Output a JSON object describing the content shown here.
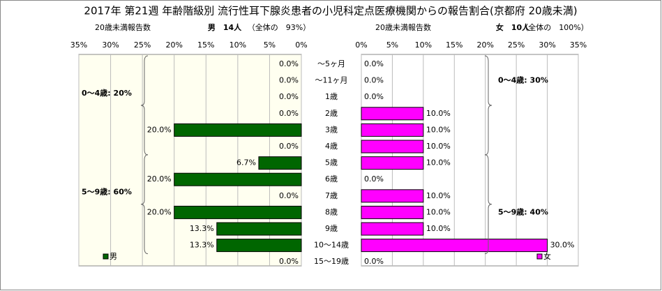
{
  "title": "2017年 第21週 年齢階級別 流行性耳下腺炎患者の小児科定点医療機関からの報告割合(京都府 20歳未満)",
  "categories": [
    "～5ヶ月",
    "～11ヶ月",
    "1歳",
    "2歳",
    "3歳",
    "4歳",
    "5歳",
    "6歳",
    "7歳",
    "8歳",
    "9歳",
    "10～14歳",
    "15～19歳"
  ],
  "chart_data": [
    {
      "type": "bar",
      "direction": "left",
      "subtitle": [
        "20歳未満報告数",
        "男　14人",
        "（全体の　93%）"
      ],
      "xlim": [
        0,
        35
      ],
      "xticks": [
        {
          "value": 0,
          "label": "0%"
        },
        {
          "value": 5,
          "label": "5%"
        },
        {
          "value": 10,
          "label": "10%"
        },
        {
          "value": 15,
          "label": "15%"
        },
        {
          "value": 20,
          "label": "20%"
        },
        {
          "value": 25,
          "label": "25%"
        },
        {
          "value": 30,
          "label": "30%"
        },
        {
          "value": 35,
          "label": "35%"
        }
      ],
      "grid": true,
      "series": [
        {
          "name": "男",
          "color": "#006600",
          "values": [
            0,
            0,
            0,
            0,
            20,
            0,
            6.7,
            20,
            0,
            20,
            13.3,
            13.3,
            0
          ],
          "value_labels": [
            "0.0%",
            "0.0%",
            "0.0%",
            "0.0%",
            "20.0%",
            "0.0%",
            "6.7%",
            "20.0%",
            "0.0%",
            "20.0%",
            "13.3%",
            "13.3%",
            "0.0%"
          ]
        }
      ],
      "annotations": [
        "0～4歳: 20%",
        "5～9歳: 60%"
      ]
    },
    {
      "type": "bar",
      "direction": "right",
      "subtitle": [
        "20歳未満報告数",
        "女　10人",
        "（全体の　100%）"
      ],
      "xlim": [
        0,
        35
      ],
      "xticks": [
        {
          "value": 0,
          "label": "0%"
        },
        {
          "value": 5,
          "label": "5%"
        },
        {
          "value": 10,
          "label": "10%"
        },
        {
          "value": 15,
          "label": "15%"
        },
        {
          "value": 20,
          "label": "20%"
        },
        {
          "value": 25,
          "label": "25%"
        },
        {
          "value": 30,
          "label": "30%"
        },
        {
          "value": 35,
          "label": "35%"
        }
      ],
      "grid": true,
      "series": [
        {
          "name": "女",
          "color": "#ff00ff",
          "values": [
            0,
            0,
            0,
            10,
            10,
            10,
            10,
            0,
            10,
            10,
            10,
            30,
            0
          ],
          "value_labels": [
            "0.0%",
            "0.0%",
            "0.0%",
            "10.0%",
            "10.0%",
            "10.0%",
            "10.0%",
            "0.0%",
            "10.0%",
            "10.0%",
            "10.0%",
            "30.0%",
            "0.0%"
          ]
        }
      ],
      "annotations": [
        "0～4歳: 30%",
        "5～9歳: 40%"
      ]
    }
  ]
}
